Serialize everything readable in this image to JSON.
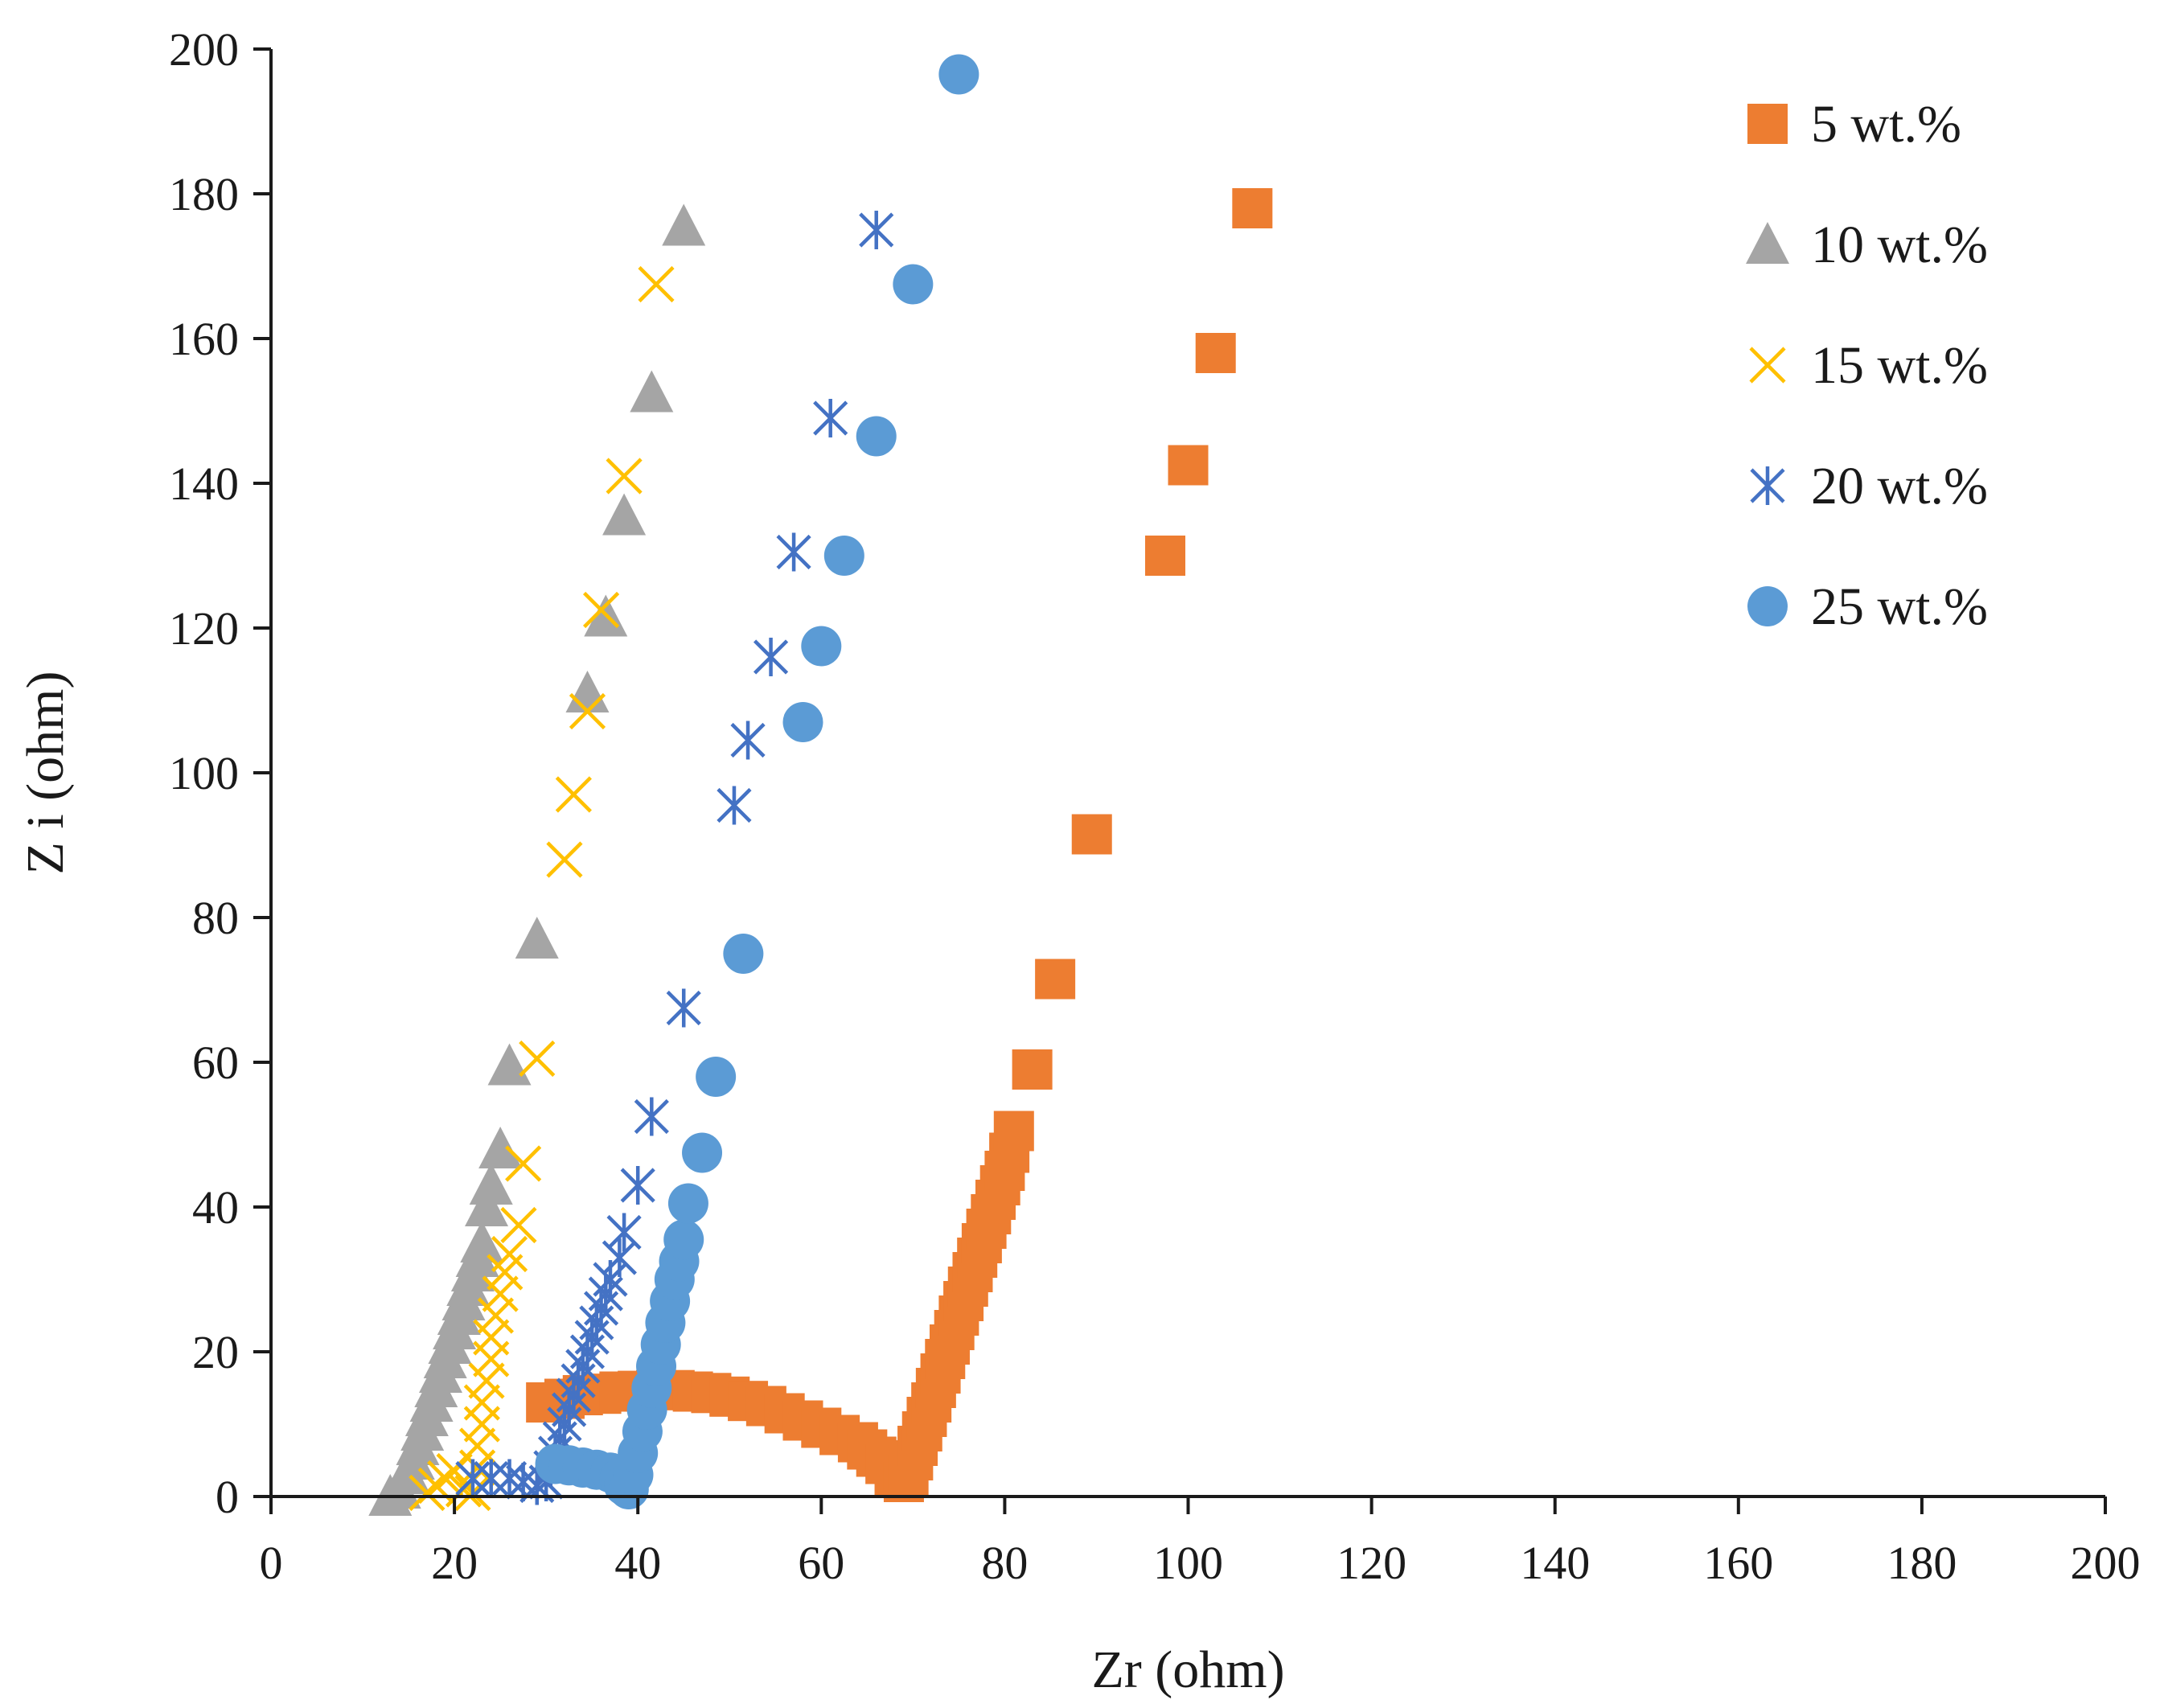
{
  "chart_data": {
    "type": "scatter",
    "title": "",
    "xlabel": "Zr (ohm)",
    "ylabel": "Z i (ohm)",
    "xlim": [
      0,
      200
    ],
    "ylim": [
      0,
      200
    ],
    "xticks": [
      0,
      20,
      40,
      60,
      80,
      100,
      120,
      140,
      160,
      180,
      200
    ],
    "yticks": [
      0,
      20,
      40,
      60,
      80,
      100,
      120,
      140,
      160,
      180,
      200
    ],
    "grid": false,
    "legend_position": "top-right",
    "series": [
      {
        "name": "5 wt.%",
        "marker": "square",
        "color": "#ED7D31",
        "points": [
          [
            30,
            13
          ],
          [
            32,
            13.5
          ],
          [
            34,
            14
          ],
          [
            36,
            14.2
          ],
          [
            38,
            14.5
          ],
          [
            40,
            14.6
          ],
          [
            42,
            14.7
          ],
          [
            44,
            14.7
          ],
          [
            46,
            14.5
          ],
          [
            48,
            14.3
          ],
          [
            50,
            13.8
          ],
          [
            52,
            13.2
          ],
          [
            54,
            12.5
          ],
          [
            56,
            11.5
          ],
          [
            58,
            10.5
          ],
          [
            60,
            9.5
          ],
          [
            62,
            8.5
          ],
          [
            64,
            7.5
          ],
          [
            65,
            6.5
          ],
          [
            66,
            5.5
          ],
          [
            67,
            4.5
          ],
          [
            68,
            3
          ],
          [
            69,
            2
          ],
          [
            69.5,
            3
          ],
          [
            70,
            5
          ],
          [
            70.5,
            7
          ],
          [
            71,
            9
          ],
          [
            71.5,
            11
          ],
          [
            72,
            13
          ],
          [
            72.5,
            15
          ],
          [
            73,
            17
          ],
          [
            73.5,
            19
          ],
          [
            74,
            21
          ],
          [
            74.5,
            23
          ],
          [
            75,
            25
          ],
          [
            75.5,
            27
          ],
          [
            76,
            29
          ],
          [
            76.5,
            31
          ],
          [
            77,
            33
          ],
          [
            77.5,
            35
          ],
          [
            78,
            37
          ],
          [
            78.5,
            39
          ],
          [
            79,
            41
          ],
          [
            79.5,
            43
          ],
          [
            80,
            45
          ],
          [
            80.5,
            47.5
          ],
          [
            81,
            50.5
          ],
          [
            83,
            59
          ],
          [
            85.5,
            71.5
          ],
          [
            89.5,
            91.5
          ],
          [
            97.5,
            130
          ],
          [
            100,
            142.5
          ],
          [
            103,
            158
          ],
          [
            107,
            178
          ]
        ]
      },
      {
        "name": "10 wt.%",
        "marker": "triangle",
        "color": "#A5A5A5",
        "points": [
          [
            13,
            0
          ],
          [
            14,
            1
          ],
          [
            15,
            3
          ],
          [
            15.5,
            5
          ],
          [
            16,
            7
          ],
          [
            16.5,
            9
          ],
          [
            17,
            11
          ],
          [
            17.5,
            13
          ],
          [
            18,
            15
          ],
          [
            18.5,
            17
          ],
          [
            19,
            19
          ],
          [
            19.5,
            21
          ],
          [
            20,
            23
          ],
          [
            20.5,
            25
          ],
          [
            21,
            27
          ],
          [
            21.5,
            29
          ],
          [
            22,
            31
          ],
          [
            22.5,
            33
          ],
          [
            23,
            35
          ],
          [
            23.5,
            40
          ],
          [
            24,
            43
          ],
          [
            25,
            48
          ],
          [
            26,
            59.5
          ],
          [
            29,
            77
          ],
          [
            34.5,
            111
          ],
          [
            36.5,
            121.5
          ],
          [
            38.5,
            135.5
          ],
          [
            41.5,
            152.5
          ],
          [
            45,
            175.5
          ]
        ]
      },
      {
        "name": "15 wt.%",
        "marker": "x",
        "color": "#FFC000",
        "points": [
          [
            17,
            0.5
          ],
          [
            18,
            1.5
          ],
          [
            19,
            2.5
          ],
          [
            20,
            3.5
          ],
          [
            21,
            1
          ],
          [
            22,
            0.5
          ],
          [
            22.5,
            4
          ],
          [
            22.5,
            7
          ],
          [
            23,
            10
          ],
          [
            23,
            13
          ],
          [
            23.5,
            16
          ],
          [
            24,
            19
          ],
          [
            24,
            22
          ],
          [
            24.5,
            25
          ],
          [
            25,
            28
          ],
          [
            25.5,
            31
          ],
          [
            26,
            33.5
          ],
          [
            27,
            37.5
          ],
          [
            27.5,
            46
          ],
          [
            29,
            60.5
          ],
          [
            32,
            88
          ],
          [
            33,
            97
          ],
          [
            34.5,
            108.5
          ],
          [
            36,
            122.5
          ],
          [
            38.5,
            141
          ],
          [
            42,
            167.5
          ]
        ]
      },
      {
        "name": "20 wt.%",
        "marker": "asterisk",
        "color": "#4472C4",
        "points": [
          [
            22,
            2.5
          ],
          [
            24,
            2.5
          ],
          [
            26,
            2.5
          ],
          [
            27.5,
            2
          ],
          [
            29,
            1.5
          ],
          [
            30,
            2
          ],
          [
            30.5,
            4
          ],
          [
            31,
            6
          ],
          [
            31.5,
            8
          ],
          [
            32,
            10
          ],
          [
            32.5,
            12
          ],
          [
            33,
            14
          ],
          [
            33.5,
            16
          ],
          [
            34,
            18
          ],
          [
            34.5,
            20
          ],
          [
            35,
            22
          ],
          [
            35.5,
            24
          ],
          [
            36,
            26
          ],
          [
            36.5,
            28
          ],
          [
            37,
            30
          ],
          [
            38,
            33
          ],
          [
            38.5,
            36.5
          ],
          [
            40,
            43
          ],
          [
            41.5,
            52.5
          ],
          [
            45,
            67.5
          ],
          [
            50.5,
            95.5
          ],
          [
            52,
            104.5
          ],
          [
            54.5,
            116
          ],
          [
            57,
            130.5
          ],
          [
            61,
            149
          ],
          [
            66,
            175
          ]
        ]
      },
      {
        "name": "25 wt.%",
        "marker": "circle",
        "color": "#5B9BD5",
        "points": [
          [
            31,
            4.5
          ],
          [
            32.5,
            4.3
          ],
          [
            34,
            4
          ],
          [
            35.5,
            3.7
          ],
          [
            37,
            3.3
          ],
          [
            38,
            2.5
          ],
          [
            38.5,
            1.5
          ],
          [
            39,
            1
          ],
          [
            39.5,
            3
          ],
          [
            40,
            6
          ],
          [
            40.5,
            9
          ],
          [
            41,
            12
          ],
          [
            41.5,
            15
          ],
          [
            42,
            18
          ],
          [
            42.5,
            21
          ],
          [
            43,
            24
          ],
          [
            43.5,
            27
          ],
          [
            44,
            30
          ],
          [
            44.5,
            32.5
          ],
          [
            45,
            35.5
          ],
          [
            45.5,
            40.5
          ],
          [
            47,
            47.5
          ],
          [
            48.5,
            58
          ],
          [
            51.5,
            75
          ],
          [
            58,
            107
          ],
          [
            60,
            117.5
          ],
          [
            62.5,
            130
          ],
          [
            66,
            146.5
          ],
          [
            70,
            167.5
          ],
          [
            75,
            196.5
          ]
        ]
      }
    ]
  }
}
